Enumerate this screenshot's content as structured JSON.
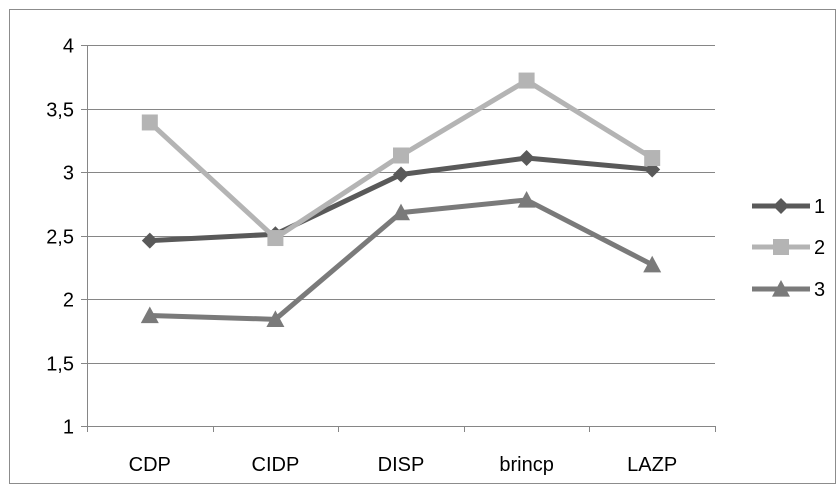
{
  "chart_data": {
    "type": "line",
    "title": "",
    "xlabel": "",
    "ylabel": "",
    "categories": [
      "CDP",
      "CIDP",
      "DISP",
      "brincp",
      "LAZP"
    ],
    "ylim": [
      1,
      4
    ],
    "yticks": [
      "1",
      "1,5",
      "2",
      "2,5",
      "3",
      "3,5",
      "4"
    ],
    "ytick_values": [
      1,
      1.5,
      2,
      2.5,
      3,
      3.5,
      4
    ],
    "grid": true,
    "legend_position": "right",
    "series": [
      {
        "name": "1",
        "values": [
          2.46,
          2.51,
          2.98,
          3.11,
          3.02
        ],
        "color": "#595959",
        "marker": "diamond"
      },
      {
        "name": "2",
        "values": [
          3.39,
          2.48,
          3.13,
          3.72,
          3.11
        ],
        "color": "#b4b4b4",
        "marker": "square"
      },
      {
        "name": "3",
        "values": [
          1.87,
          1.84,
          2.68,
          2.78,
          2.27
        ],
        "color": "#7a7a7a",
        "marker": "triangle"
      }
    ]
  }
}
